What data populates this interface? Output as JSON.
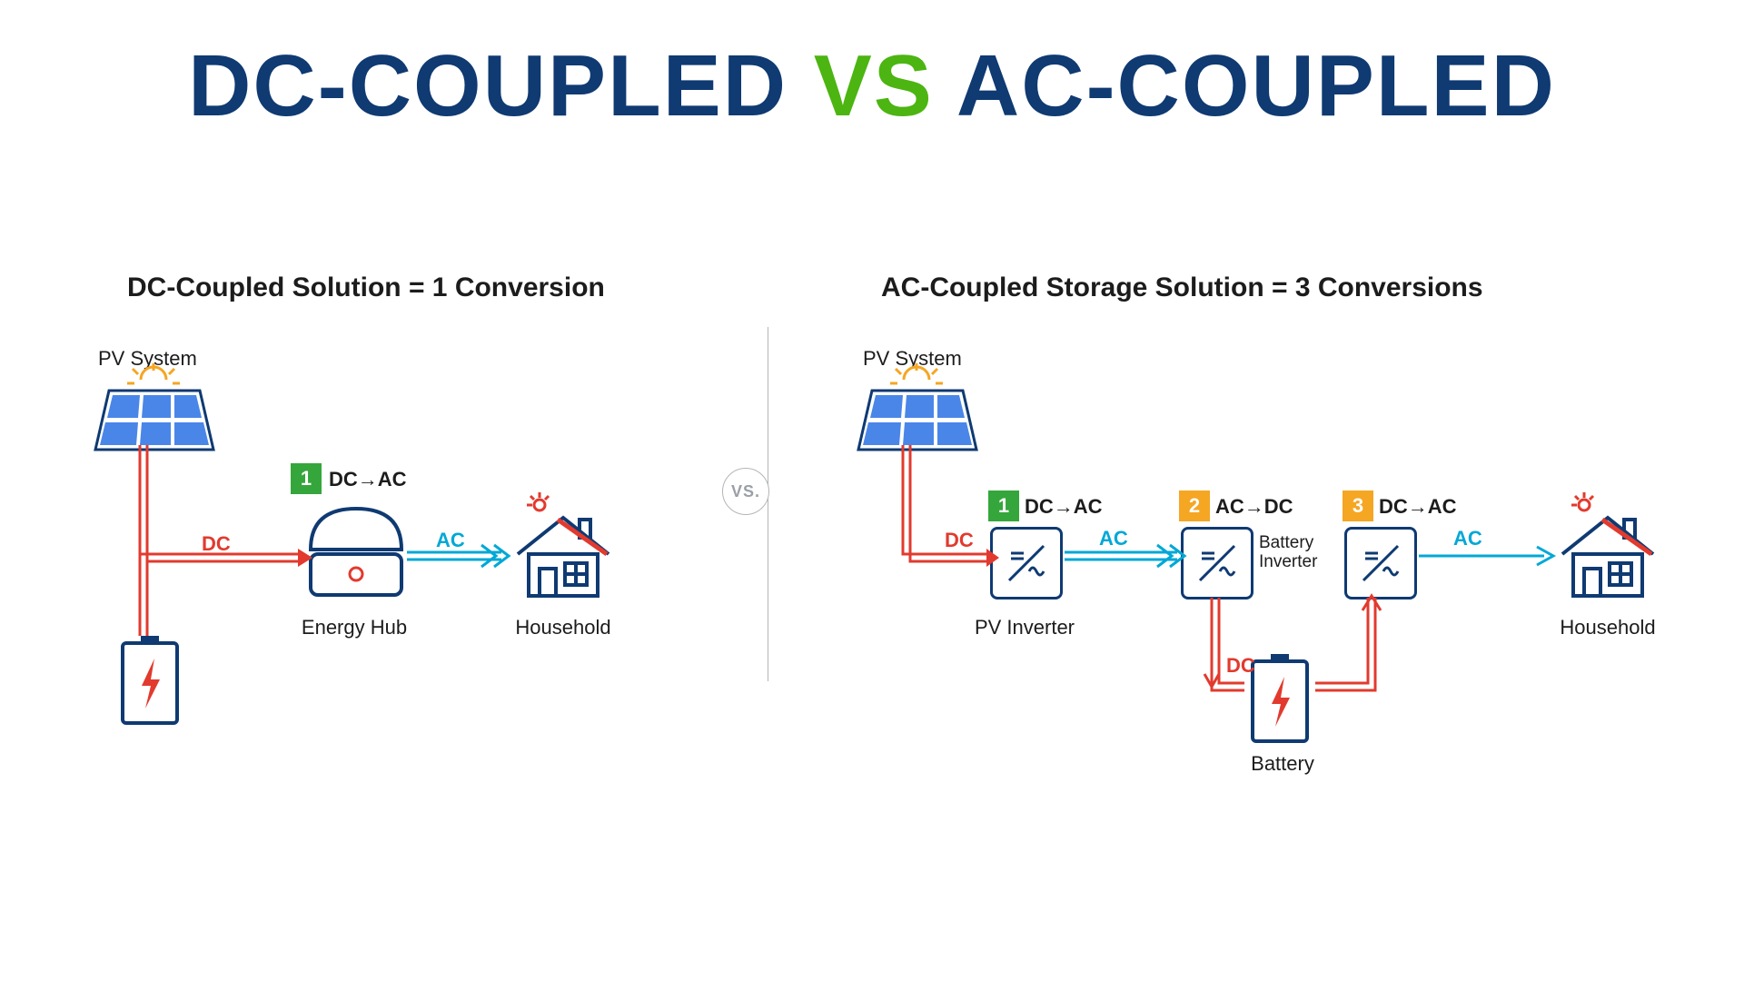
{
  "colors": {
    "navy": "#0f3a72",
    "green_title": "#4cb511",
    "dc_red": "#e23a2e",
    "ac_cyan": "#00a8d6",
    "pv_blue": "#4a86e8",
    "badge_green": "#35a63b",
    "badge_orange": "#f5a623",
    "divider": "#b5b5b5",
    "text": "#1c1c1c",
    "bg": "#ffffff"
  },
  "title": {
    "left": "DC-COUPLED",
    "mid": "VS",
    "right": "AC-COUPLED"
  },
  "vs_label": "VS.",
  "left": {
    "subtitle": "DC-Coupled Solution = 1 Conversion",
    "pv_label": "PV System",
    "hub_label": "Energy Hub",
    "house_label": "Household",
    "step1_num": "1",
    "step1_text": "DC→AC",
    "dc_label": "DC",
    "ac_label": "AC"
  },
  "right": {
    "subtitle": "AC-Coupled Storage Solution = 3 Conversions",
    "pv_label": "PV System",
    "pv_inverter_label": "PV Inverter",
    "batt_inverter_label": "Battery\nInverter",
    "battery_label": "Battery",
    "house_label": "Household",
    "step1_num": "1",
    "step1_text": "DC→AC",
    "step2_num": "2",
    "step2_text": "AC→DC",
    "step3_num": "3",
    "step3_text": "DC→AC",
    "dc_label1": "DC",
    "ac_label1": "AC",
    "dc_label2": "DC",
    "ac_label2": "AC"
  }
}
